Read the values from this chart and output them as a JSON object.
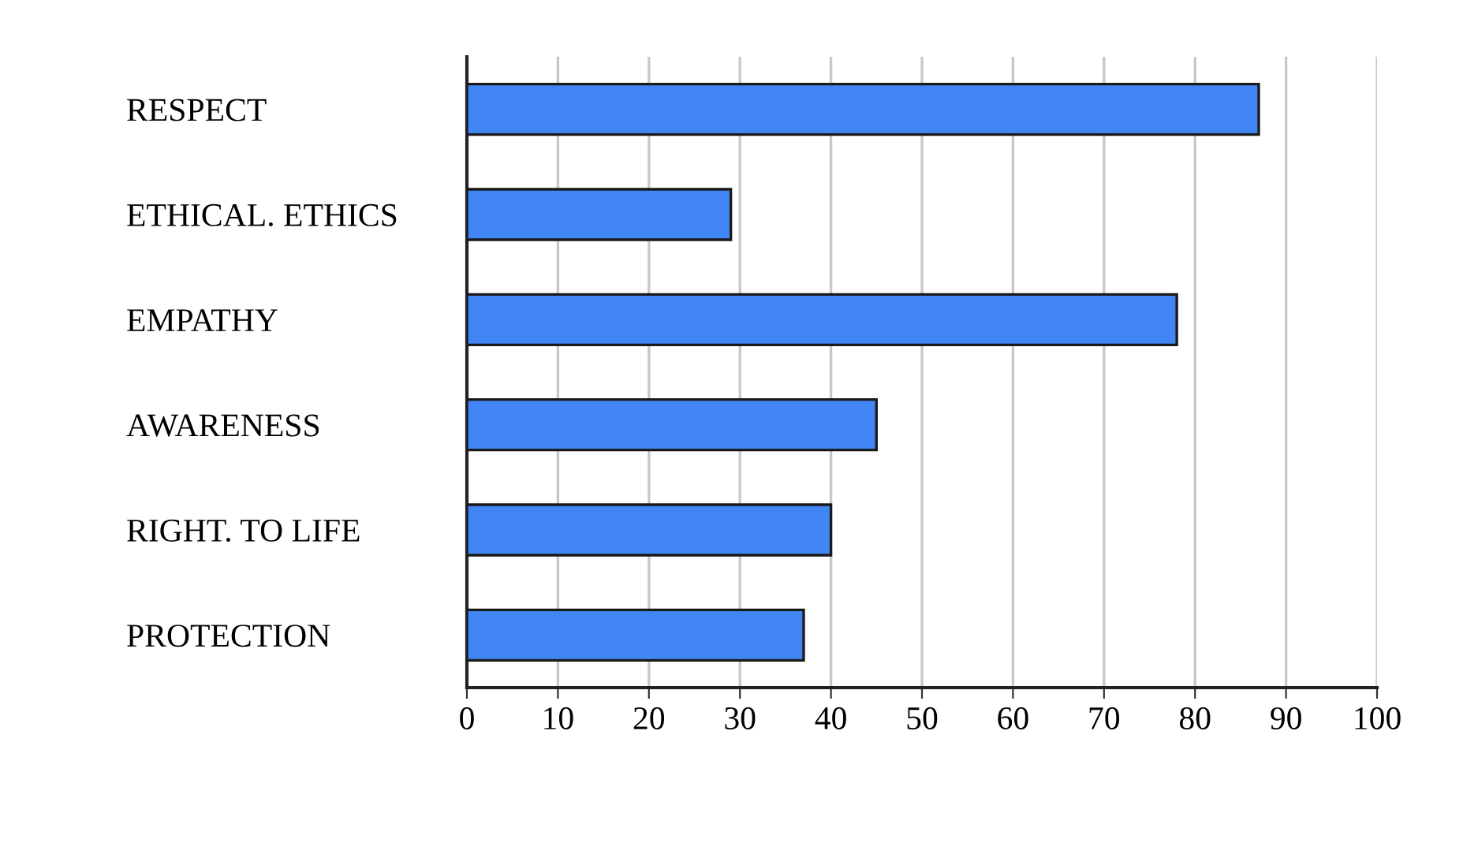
{
  "chart_data": {
    "type": "bar",
    "orientation": "horizontal",
    "categories": [
      "RESPECT",
      "ETHICAL. ETHICS",
      "EMPATHY",
      "AWARENESS",
      "RIGHT. TO LIFE",
      "PROTECTION"
    ],
    "values": [
      87,
      29,
      78,
      45,
      40,
      37
    ],
    "color": "#4285f4",
    "xlim": [
      0,
      100
    ],
    "xticks": [
      0,
      10,
      20,
      30,
      40,
      50,
      60,
      70,
      80,
      90,
      100
    ],
    "grid": "x",
    "legend": false
  }
}
